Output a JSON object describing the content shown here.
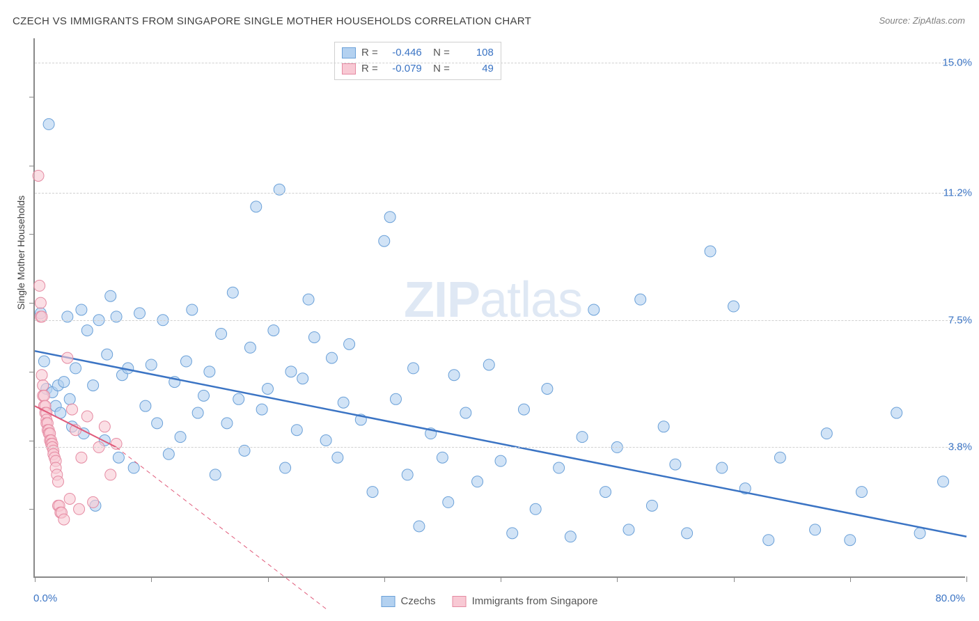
{
  "title": "CZECH VS IMMIGRANTS FROM SINGAPORE SINGLE MOTHER HOUSEHOLDS CORRELATION CHART",
  "source": "Source: ZipAtlas.com",
  "watermark": {
    "part1": "ZIP",
    "part2": "atlas"
  },
  "ylabel": "Single Mother Households",
  "chart": {
    "type": "scatter",
    "background_color": "#ffffff",
    "grid_color": "#d0d0d0",
    "grid_dash": "4,4",
    "axis_color": "#888888",
    "xlim": [
      0,
      80
    ],
    "ylim": [
      0,
      15.7
    ],
    "x_tick_label_left": "0.0%",
    "x_tick_label_right": "80.0%",
    "x_tick_positions": [
      0,
      10,
      20,
      30,
      40,
      50,
      60,
      70,
      80
    ],
    "y_gridlines": [
      {
        "value": 15.0,
        "label": "15.0%"
      },
      {
        "value": 11.2,
        "label": "11.2%"
      },
      {
        "value": 7.5,
        "label": "7.5%"
      },
      {
        "value": 3.8,
        "label": "3.8%"
      }
    ],
    "y_minor_ticks": [
      2,
      4,
      6,
      8,
      10,
      12,
      14
    ],
    "series": [
      {
        "name": "Czechs",
        "color_fill": "#b3d1f0",
        "color_stroke": "#6aa0d8",
        "fill_opacity": 0.6,
        "marker_radius": 8,
        "R": "-0.446",
        "N": "108",
        "regression": {
          "x1": 0,
          "y1": 6.6,
          "x2": 80,
          "y2": 1.2,
          "stroke": "#3b74c4",
          "width": 2.5,
          "dash": ""
        },
        "points": [
          [
            0.5,
            7.7
          ],
          [
            0.8,
            6.3
          ],
          [
            1.0,
            5.5
          ],
          [
            1.2,
            13.2
          ],
          [
            1.5,
            5.4
          ],
          [
            1.8,
            5.0
          ],
          [
            2.0,
            5.6
          ],
          [
            2.2,
            4.8
          ],
          [
            2.5,
            5.7
          ],
          [
            2.8,
            7.6
          ],
          [
            3.0,
            5.2
          ],
          [
            3.2,
            4.4
          ],
          [
            3.5,
            6.1
          ],
          [
            4.0,
            7.8
          ],
          [
            4.2,
            4.2
          ],
          [
            4.5,
            7.2
          ],
          [
            5.0,
            5.6
          ],
          [
            5.2,
            2.1
          ],
          [
            5.5,
            7.5
          ],
          [
            6.0,
            4.0
          ],
          [
            6.2,
            6.5
          ],
          [
            6.5,
            8.2
          ],
          [
            7.0,
            7.6
          ],
          [
            7.2,
            3.5
          ],
          [
            7.5,
            5.9
          ],
          [
            8.0,
            6.1
          ],
          [
            8.5,
            3.2
          ],
          [
            9.0,
            7.7
          ],
          [
            9.5,
            5.0
          ],
          [
            10.0,
            6.2
          ],
          [
            10.5,
            4.5
          ],
          [
            11.0,
            7.5
          ],
          [
            11.5,
            3.6
          ],
          [
            12.0,
            5.7
          ],
          [
            12.5,
            4.1
          ],
          [
            13.0,
            6.3
          ],
          [
            13.5,
            7.8
          ],
          [
            14.0,
            4.8
          ],
          [
            14.5,
            5.3
          ],
          [
            15.0,
            6.0
          ],
          [
            15.5,
            3.0
          ],
          [
            16.0,
            7.1
          ],
          [
            16.5,
            4.5
          ],
          [
            17.0,
            8.3
          ],
          [
            17.5,
            5.2
          ],
          [
            18.0,
            3.7
          ],
          [
            18.5,
            6.7
          ],
          [
            19.0,
            10.8
          ],
          [
            19.5,
            4.9
          ],
          [
            20.0,
            5.5
          ],
          [
            20.5,
            7.2
          ],
          [
            21.0,
            11.3
          ],
          [
            21.5,
            3.2
          ],
          [
            22.0,
            6.0
          ],
          [
            22.5,
            4.3
          ],
          [
            23.0,
            5.8
          ],
          [
            23.5,
            8.1
          ],
          [
            24.0,
            7.0
          ],
          [
            25.0,
            4.0
          ],
          [
            25.5,
            6.4
          ],
          [
            26.0,
            3.5
          ],
          [
            26.5,
            5.1
          ],
          [
            27.0,
            6.8
          ],
          [
            28.0,
            4.6
          ],
          [
            29.0,
            2.5
          ],
          [
            30.0,
            9.8
          ],
          [
            30.5,
            10.5
          ],
          [
            31.0,
            5.2
          ],
          [
            32.0,
            3.0
          ],
          [
            32.5,
            6.1
          ],
          [
            33.0,
            1.5
          ],
          [
            34.0,
            4.2
          ],
          [
            35.0,
            3.5
          ],
          [
            35.5,
            2.2
          ],
          [
            36.0,
            5.9
          ],
          [
            37.0,
            4.8
          ],
          [
            38.0,
            2.8
          ],
          [
            39.0,
            6.2
          ],
          [
            40.0,
            3.4
          ],
          [
            41.0,
            1.3
          ],
          [
            42.0,
            4.9
          ],
          [
            43.0,
            2.0
          ],
          [
            44.0,
            5.5
          ],
          [
            45.0,
            3.2
          ],
          [
            46.0,
            1.2
          ],
          [
            47.0,
            4.1
          ],
          [
            48.0,
            7.8
          ],
          [
            49.0,
            2.5
          ],
          [
            50.0,
            3.8
          ],
          [
            51.0,
            1.4
          ],
          [
            52.0,
            8.1
          ],
          [
            53.0,
            2.1
          ],
          [
            54.0,
            4.4
          ],
          [
            55.0,
            3.3
          ],
          [
            56.0,
            1.3
          ],
          [
            58.0,
            9.5
          ],
          [
            59.0,
            3.2
          ],
          [
            60.0,
            7.9
          ],
          [
            61.0,
            2.6
          ],
          [
            63.0,
            1.1
          ],
          [
            64.0,
            3.5
          ],
          [
            67.0,
            1.4
          ],
          [
            68.0,
            4.2
          ],
          [
            70.0,
            1.1
          ],
          [
            71.0,
            2.5
          ],
          [
            74.0,
            4.8
          ],
          [
            76.0,
            1.3
          ],
          [
            78.0,
            2.8
          ]
        ]
      },
      {
        "name": "Immigrants from Singapore",
        "color_fill": "#f8c9d4",
        "color_stroke": "#e58aa2",
        "fill_opacity": 0.6,
        "marker_radius": 8,
        "R": "-0.079",
        "N": "49",
        "regression": {
          "x1": 0,
          "y1": 5.0,
          "x2": 7,
          "y2": 3.8,
          "stroke": "#e05a7a",
          "width": 2,
          "dash": "",
          "ext_x1": 7,
          "ext_y1": 3.8,
          "ext_x2": 25,
          "ext_y2": -0.9,
          "ext_dash": "6,5",
          "ext_width": 1
        },
        "points": [
          [
            0.3,
            11.7
          ],
          [
            0.4,
            8.5
          ],
          [
            0.5,
            8.0
          ],
          [
            0.5,
            7.6
          ],
          [
            0.6,
            7.6
          ],
          [
            0.6,
            5.9
          ],
          [
            0.7,
            5.6
          ],
          [
            0.7,
            5.3
          ],
          [
            0.8,
            5.3
          ],
          [
            0.8,
            5.0
          ],
          [
            0.9,
            5.0
          ],
          [
            0.9,
            4.8
          ],
          [
            1.0,
            4.8
          ],
          [
            1.0,
            4.6
          ],
          [
            1.0,
            4.5
          ],
          [
            1.1,
            4.5
          ],
          [
            1.1,
            4.3
          ],
          [
            1.2,
            4.3
          ],
          [
            1.2,
            4.2
          ],
          [
            1.3,
            4.2
          ],
          [
            1.3,
            4.0
          ],
          [
            1.4,
            4.0
          ],
          [
            1.4,
            3.9
          ],
          [
            1.5,
            3.9
          ],
          [
            1.5,
            3.8
          ],
          [
            1.6,
            3.7
          ],
          [
            1.6,
            3.6
          ],
          [
            1.7,
            3.5
          ],
          [
            1.8,
            3.4
          ],
          [
            1.8,
            3.2
          ],
          [
            1.9,
            3.0
          ],
          [
            2.0,
            2.8
          ],
          [
            2.0,
            2.1
          ],
          [
            2.1,
            2.1
          ],
          [
            2.2,
            1.9
          ],
          [
            2.3,
            1.9
          ],
          [
            2.5,
            1.7
          ],
          [
            2.8,
            6.4
          ],
          [
            3.0,
            2.3
          ],
          [
            3.2,
            4.9
          ],
          [
            3.5,
            4.3
          ],
          [
            3.8,
            2.0
          ],
          [
            4.0,
            3.5
          ],
          [
            4.5,
            4.7
          ],
          [
            5.0,
            2.2
          ],
          [
            5.5,
            3.8
          ],
          [
            6.0,
            4.4
          ],
          [
            6.5,
            3.0
          ],
          [
            7.0,
            3.9
          ]
        ]
      }
    ]
  },
  "legend_bottom": [
    {
      "swatch": "blue",
      "label": "Czechs"
    },
    {
      "swatch": "pink",
      "label": "Immigrants from Singapore"
    }
  ]
}
